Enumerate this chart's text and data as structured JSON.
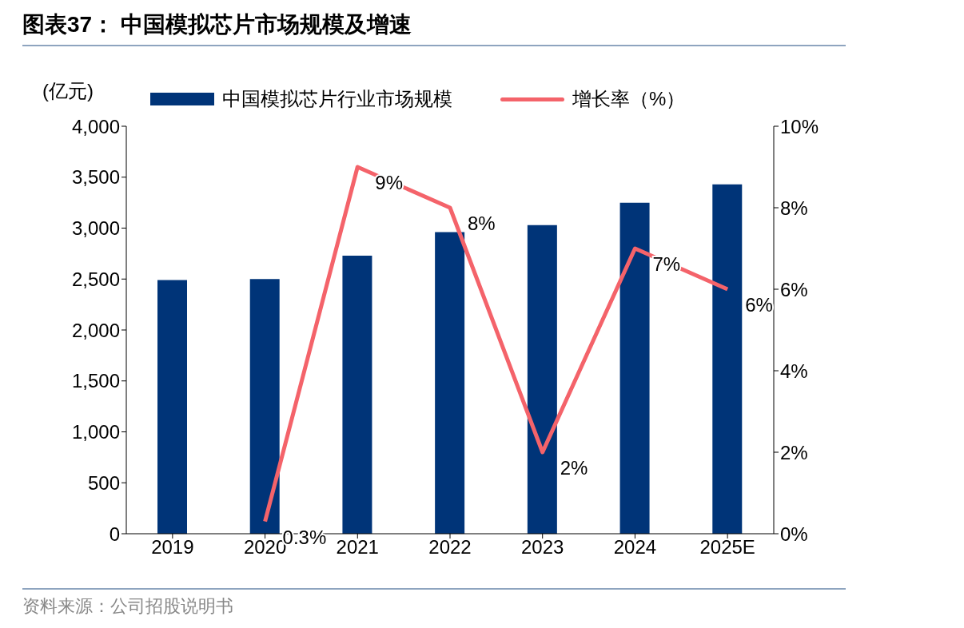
{
  "chart_data": {
    "type": "bar",
    "title": "图表37： 中国模拟芯片市场规模及增速",
    "ylabel": "(亿元)",
    "categories": [
      "2019",
      "2020",
      "2021",
      "2022",
      "2023",
      "2024",
      "2025E"
    ],
    "series": [
      {
        "name": "中国模拟芯片行业市场规模",
        "color": "#003478",
        "values": [
          2490,
          2500,
          2730,
          2960,
          3030,
          3250,
          3430
        ]
      },
      {
        "name": "增长率（%）",
        "type": "line",
        "axis": "y2",
        "color": "#f4636a",
        "values": [
          null,
          0.3,
          9,
          8,
          2,
          7,
          6
        ],
        "value_labels": [
          null,
          "0.3%",
          "9%",
          "8%",
          "2%",
          "7%",
          "6%"
        ]
      }
    ],
    "ylim": [
      0,
      4000
    ],
    "yticks": [
      {
        "value": 0,
        "label": "0"
      },
      {
        "value": 500,
        "label": "500"
      },
      {
        "value": 1000,
        "label": "1,000"
      },
      {
        "value": 1500,
        "label": "1,500"
      },
      {
        "value": 2000,
        "label": "2,000"
      },
      {
        "value": 2500,
        "label": "2,500"
      },
      {
        "value": 3000,
        "label": "3,000"
      },
      {
        "value": 3500,
        "label": "3,500"
      },
      {
        "value": 4000,
        "label": "4,000"
      }
    ],
    "y2lim": [
      0,
      10
    ],
    "y2ticks": [
      {
        "value": 0,
        "label": "0%"
      },
      {
        "value": 2,
        "label": "2%"
      },
      {
        "value": 4,
        "label": "4%"
      },
      {
        "value": 6,
        "label": "6%"
      },
      {
        "value": 8,
        "label": "8%"
      },
      {
        "value": 10,
        "label": "10%"
      }
    ],
    "grid": false,
    "legend": "top",
    "marker": "none",
    "line_style": "solid",
    "annotations": [
      "资料来源：公司招股说明书"
    ]
  }
}
